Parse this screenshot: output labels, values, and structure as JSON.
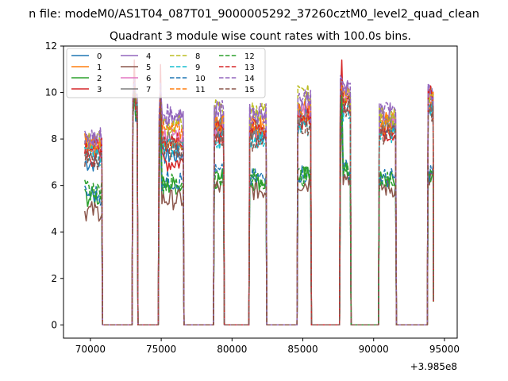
{
  "figure": {
    "suptitle": "n file: modeM0/AS1T04_087T01_9000005292_37260cztM0_level2_quad_clean"
  },
  "chart_data": {
    "type": "line",
    "title": "Quadrant 3 module wise count rates with 100.0s bins.",
    "xlabel": "",
    "ylabel": "",
    "x_offset_label": "+3.985e8",
    "xlim": [
      68100,
      95900
    ],
    "ylim": [
      -0.57,
      12.0
    ],
    "x_ticks": [
      70000,
      75000,
      80000,
      85000,
      90000,
      95000
    ],
    "x_tick_labels": [
      "70000",
      "75000",
      "80000",
      "85000",
      "90000",
      "95000"
    ],
    "y_ticks": [
      0,
      2,
      4,
      6,
      8,
      10,
      12
    ],
    "y_tick_labels": [
      "0",
      "2",
      "4",
      "6",
      "8",
      "10",
      "12"
    ],
    "grid": false,
    "legend_placement": "top-left",
    "legend_columns": 4,
    "active_segments": [
      {
        "start": 69600,
        "end": 70800
      },
      {
        "start": 73000,
        "end": 73300
      },
      {
        "start": 74850,
        "end": 76550
      },
      {
        "start": 78750,
        "end": 79400
      },
      {
        "start": 81250,
        "end": 82400
      },
      {
        "start": 84650,
        "end": 85550
      },
      {
        "start": 87650,
        "end": 88350
      },
      {
        "start": 90400,
        "end": 91550
      },
      {
        "start": 93850,
        "end": 94200
      }
    ],
    "series": [
      {
        "name": "0",
        "color": "#1f77b4",
        "dash": "solid",
        "levels": [
          7.0,
          9.5,
          7.3,
          8.4,
          8.3,
          9.0,
          9.6,
          8.5,
          9.4
        ],
        "peak": 10.2,
        "end_value": 1.0
      },
      {
        "name": "1",
        "color": "#ff7f0e",
        "dash": "solid",
        "levels": [
          7.8,
          9.7,
          8.0,
          8.8,
          8.6,
          9.3,
          9.8,
          8.7,
          9.6
        ],
        "peak": 10.4,
        "end_value": 1.0
      },
      {
        "name": "2",
        "color": "#2ca02c",
        "dash": "solid",
        "levels": [
          5.5,
          9.0,
          6.0,
          6.3,
          6.2,
          6.4,
          6.6,
          6.2,
          6.5
        ],
        "peak": 10.0,
        "end_value": 1.0
      },
      {
        "name": "3",
        "color": "#d62728",
        "dash": "solid",
        "levels": [
          7.2,
          9.4,
          7.0,
          8.2,
          8.1,
          8.8,
          9.5,
          8.3,
          10.0
        ],
        "peak": 11.4,
        "end_value": 1.0
      },
      {
        "name": "4",
        "color": "#9467bd",
        "dash": "solid",
        "levels": [
          8.0,
          9.8,
          9.0,
          9.2,
          9.0,
          9.6,
          10.2,
          9.1,
          10.2
        ],
        "peak": 10.6,
        "end_value": 1.0
      },
      {
        "name": "5",
        "color": "#8c564b",
        "dash": "solid",
        "levels": [
          4.9,
          8.8,
          5.4,
          5.9,
          5.8,
          6.1,
          6.4,
          5.9,
          6.3
        ],
        "peak": 9.8,
        "end_value": 1.0
      },
      {
        "name": "6",
        "color": "#e377c2",
        "dash": "solid",
        "levels": [
          7.5,
          9.6,
          8.2,
          8.6,
          8.5,
          9.1,
          9.7,
          8.6,
          9.5
        ],
        "peak": 10.3,
        "end_value": 1.0
      },
      {
        "name": "7",
        "color": "#7f7f7f",
        "dash": "solid",
        "levels": [
          7.4,
          9.5,
          7.9,
          8.5,
          8.4,
          9.0,
          9.6,
          8.5,
          9.5
        ],
        "peak": 10.2,
        "end_value": 1.0
      },
      {
        "name": "8",
        "color": "#bcbd22",
        "dash": "dashed",
        "levels": [
          7.9,
          9.7,
          8.6,
          9.3,
          9.2,
          9.9,
          9.9,
          9.0,
          9.8
        ],
        "peak": 10.5,
        "end_value": 1.0
      },
      {
        "name": "9",
        "color": "#17becf",
        "dash": "dashed",
        "levels": [
          7.3,
          9.4,
          7.6,
          8.0,
          8.0,
          8.5,
          9.2,
          8.2,
          9.2
        ],
        "peak": 10.1,
        "end_value": 1.0
      },
      {
        "name": "10",
        "color": "#1f77b4",
        "dash": "dashed",
        "levels": [
          5.6,
          9.0,
          6.2,
          6.5,
          6.3,
          6.5,
          6.7,
          6.3,
          6.6
        ],
        "peak": 10.0,
        "end_value": 1.0
      },
      {
        "name": "11",
        "color": "#ff7f0e",
        "dash": "dashed",
        "levels": [
          7.7,
          9.6,
          8.3,
          8.7,
          8.5,
          9.2,
          9.7,
          8.6,
          9.6
        ],
        "peak": 10.3,
        "end_value": 1.0
      },
      {
        "name": "12",
        "color": "#2ca02c",
        "dash": "dashed",
        "levels": [
          5.8,
          9.1,
          6.1,
          6.4,
          6.3,
          6.4,
          6.6,
          6.2,
          6.5
        ],
        "peak": 10.0,
        "end_value": 1.0
      },
      {
        "name": "13",
        "color": "#d62728",
        "dash": "dashed",
        "levels": [
          7.6,
          9.5,
          7.8,
          8.7,
          8.4,
          9.0,
          9.5,
          8.4,
          9.8
        ],
        "peak": 10.8,
        "end_value": 1.0
      },
      {
        "name": "14",
        "color": "#9467bd",
        "dash": "dashed",
        "levels": [
          8.1,
          9.8,
          9.1,
          9.4,
          9.1,
          9.7,
          10.3,
          9.2,
          10.1
        ],
        "peak": 10.6,
        "end_value": 1.0
      },
      {
        "name": "15",
        "color": "#8c564b",
        "dash": "dashed",
        "levels": [
          7.1,
          9.4,
          7.5,
          8.1,
          7.9,
          8.6,
          9.4,
          8.2,
          9.1
        ],
        "peak": 10.1,
        "end_value": 1.0
      }
    ]
  }
}
